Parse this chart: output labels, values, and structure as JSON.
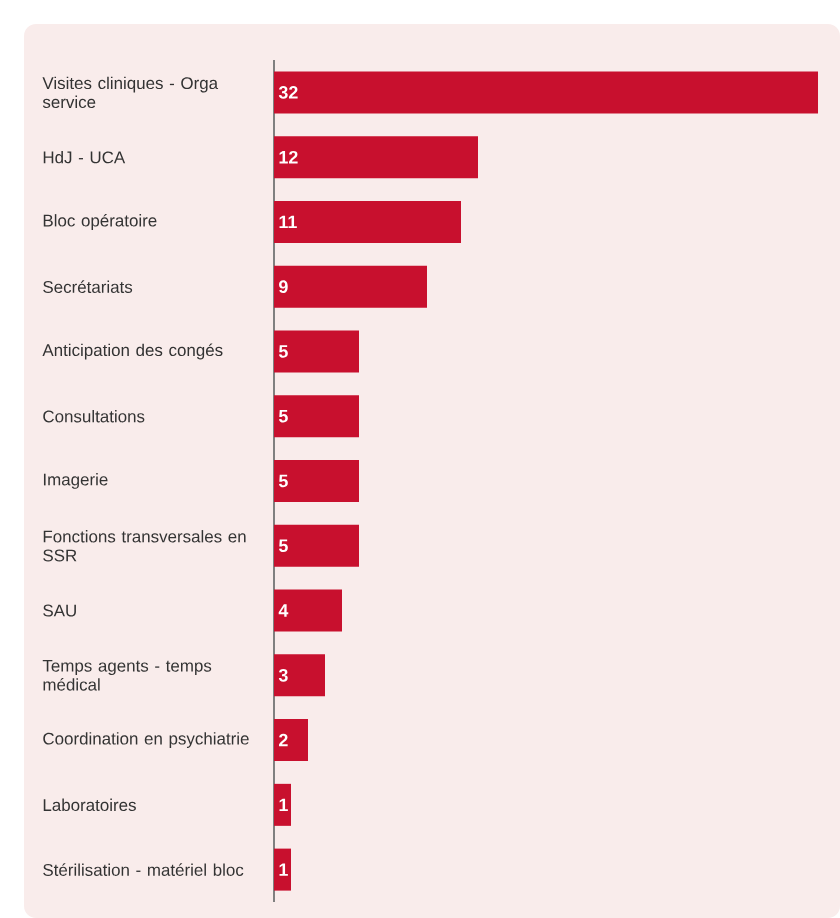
{
  "chart_data": {
    "type": "bar",
    "orientation": "horizontal",
    "categories": [
      "Visites cliniques - Orga service",
      "HdJ - UCA",
      "Bloc opératoire",
      "Secrétariats",
      "Anticipation des congés",
      "Consultations",
      "Imagerie",
      "Fonctions transversales en SSR",
      "SAU",
      "Temps agents - temps médical",
      "Coordination en psychiatrie",
      "Laboratoires",
      "Stérilisation - matériel bloc"
    ],
    "values": [
      32,
      12,
      11,
      9,
      5,
      5,
      5,
      5,
      4,
      3,
      2,
      1,
      1
    ],
    "color": "#c8102e",
    "data_labels": true
  }
}
